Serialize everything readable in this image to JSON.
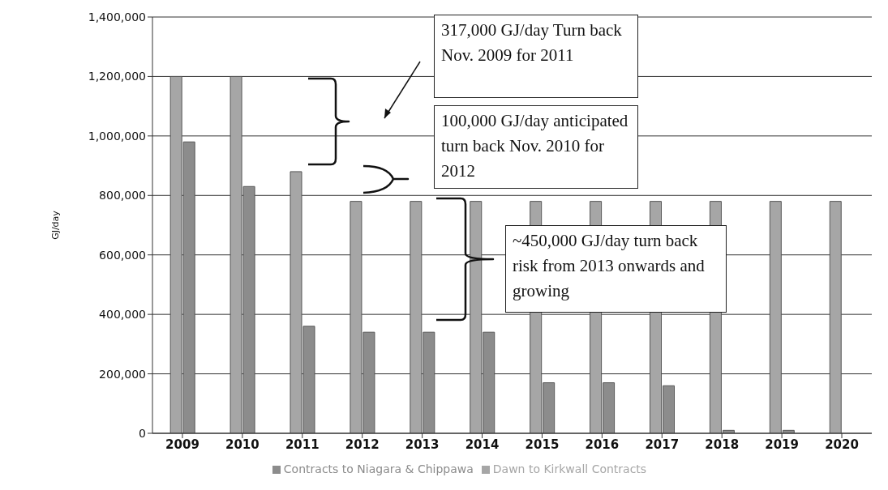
{
  "chart_data": {
    "type": "bar",
    "ylabel": "GJ/day",
    "categories": [
      "2009",
      "2010",
      "2011",
      "2012",
      "2013",
      "2014",
      "2015",
      "2016",
      "2017",
      "2018",
      "2019",
      "2020"
    ],
    "series": [
      {
        "name": "Dawn to Kirkwall Contracts",
        "color": "#a6a6a6",
        "values": [
          1200000,
          1200000,
          880000,
          780000,
          780000,
          780000,
          780000,
          780000,
          780000,
          780000,
          780000,
          780000
        ]
      },
      {
        "name": "Contracts to Niagara & Chippawa",
        "color": "#8c8c8c",
        "values": [
          980000,
          830000,
          360000,
          340000,
          340000,
          340000,
          170000,
          170000,
          160000,
          10000,
          10000,
          0
        ]
      }
    ],
    "ylim": [
      0,
      1400000
    ],
    "yticks": [
      {
        "value": 0,
        "label": "0"
      },
      {
        "value": 200000,
        "label": "200,000"
      },
      {
        "value": 400000,
        "label": "400,000"
      },
      {
        "value": 600000,
        "label": "600,000"
      },
      {
        "value": 800000,
        "label": "800,000"
      },
      {
        "value": 1000000,
        "label": "1,000,000"
      },
      {
        "value": 1200000,
        "label": "1,200,000"
      },
      {
        "value": 1400000,
        "label": "1,400,000"
      }
    ],
    "grid": "y",
    "legend": "bottom",
    "annotations": [
      "317,000 GJ/day Turn back Nov. 2009 for 2011",
      "100,000 GJ/day anticipated turn back Nov. 2010 for 2012",
      "~450,000 GJ/day turn back risk from 2013 onwards and growing"
    ]
  }
}
